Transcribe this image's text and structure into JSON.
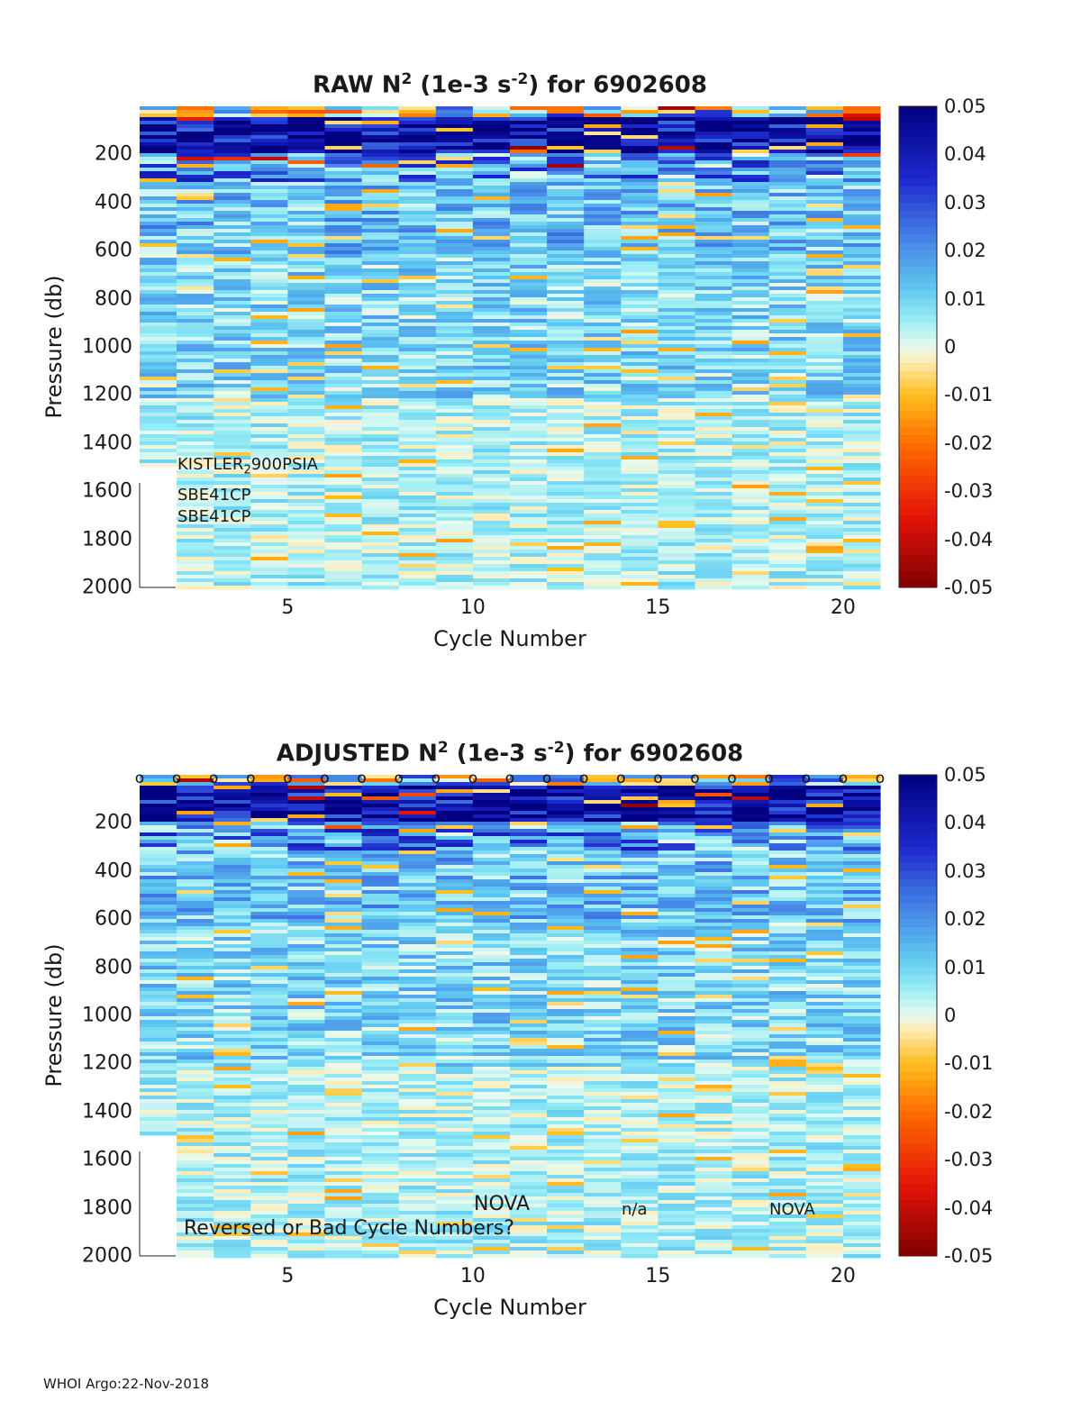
{
  "chart_data": [
    {
      "type": "heatmap",
      "title_prefix": "RAW N",
      "title_sup1": "2",
      "title_mid": " (1e-3 s",
      "title_sup2": "-2",
      "title_suffix": ") for 6902608",
      "xlabel": "Cycle Number",
      "ylabel": "Pressure (db)",
      "xlim": [
        1,
        21
      ],
      "ylim": [
        2000,
        10
      ],
      "x_ticks": [
        "5",
        "10",
        "15",
        "20"
      ],
      "y_ticks": [
        "200",
        "400",
        "600",
        "800",
        "1000",
        "1200",
        "1400",
        "1600",
        "1800",
        "2000"
      ],
      "colorbar": {
        "range": [
          -0.05,
          0.05
        ],
        "ticks": [
          "0.05",
          "0.04",
          "0.03",
          "0.02",
          "0.01",
          "0",
          "-0.01",
          "-0.02",
          "-0.03",
          "-0.04",
          "-0.05"
        ],
        "colormap": "jet-like diverging"
      },
      "cycles": [
        1,
        2,
        3,
        4,
        5,
        6,
        7,
        8,
        9,
        10,
        11,
        12,
        13,
        14,
        15,
        16,
        17,
        18,
        19,
        20
      ],
      "cycle1_max_pressure": 1490,
      "annotations": {
        "sensor_a_pre": "KISTLER",
        "sensor_a_sub": "2",
        "sensor_a_post": "900PSIA",
        "sensor_b": "SBE41CP",
        "sensor_c": "SBE41CP"
      }
    },
    {
      "type": "heatmap",
      "title_prefix": "ADJUSTED N",
      "title_sup1": "2",
      "title_mid": " (1e-3 s",
      "title_sup2": "-2",
      "title_suffix": ") for 6902608",
      "xlabel": "Cycle Number",
      "ylabel": "Pressure (db)",
      "xlim": [
        1,
        21
      ],
      "ylim": [
        2000,
        10
      ],
      "x_ticks": [
        "5",
        "10",
        "15",
        "20"
      ],
      "y_ticks": [
        "200",
        "400",
        "600",
        "800",
        "1000",
        "1200",
        "1400",
        "1600",
        "1800",
        "2000"
      ],
      "colorbar": {
        "range": [
          -0.05,
          0.05
        ],
        "ticks": [
          "0.05",
          "0.04",
          "0.03",
          "0.02",
          "0.01",
          "0",
          "-0.01",
          "-0.02",
          "-0.03",
          "-0.04",
          "-0.05"
        ],
        "colormap": "jet-like diverging"
      },
      "cycles": [
        1,
        2,
        3,
        4,
        5,
        6,
        7,
        8,
        9,
        10,
        11,
        12,
        13,
        14,
        15,
        16,
        17,
        18,
        19,
        20
      ],
      "cycle1_max_pressure": 1490,
      "top_markers": {
        "symbol": "o",
        "count": 21
      },
      "annotations": {
        "warning": "Reversed or Bad Cycle Numbers?",
        "label_a": "NOVA",
        "label_b": "n/a",
        "label_c": "NOVA"
      }
    }
  ],
  "footer": {
    "text": "WHOI Argo:22-Nov-2018"
  }
}
